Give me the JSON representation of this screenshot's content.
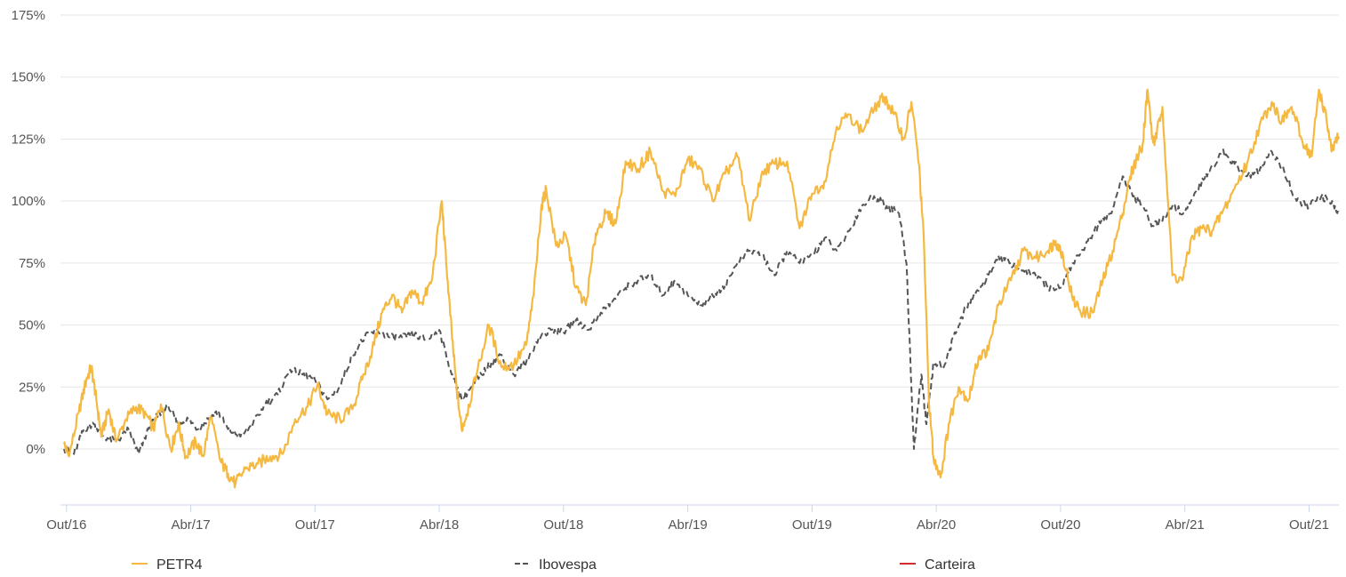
{
  "chart_data": {
    "type": "line",
    "title": "",
    "xlabel": "",
    "ylabel": "",
    "ylim": [
      -22,
      175
    ],
    "y_ticks": [
      {
        "value": 0,
        "label": "0%"
      },
      {
        "value": 25,
        "label": "25%"
      },
      {
        "value": 50,
        "label": "50%"
      },
      {
        "value": 75,
        "label": "75%"
      },
      {
        "value": 100,
        "label": "100%"
      },
      {
        "value": 125,
        "label": "125%"
      },
      {
        "value": 150,
        "label": "150%"
      },
      {
        "value": 175,
        "label": "175%"
      }
    ],
    "x_range": [
      2016.74,
      2021.87
    ],
    "x_ticks": [
      {
        "value": 2016.75,
        "label": "Out/16"
      },
      {
        "value": 2017.25,
        "label": "Abr/17"
      },
      {
        "value": 2017.75,
        "label": "Out/17"
      },
      {
        "value": 2018.25,
        "label": "Abr/18"
      },
      {
        "value": 2018.75,
        "label": "Out/18"
      },
      {
        "value": 2019.25,
        "label": "Abr/19"
      },
      {
        "value": 2019.75,
        "label": "Out/19"
      },
      {
        "value": 2020.25,
        "label": "Abr/20"
      },
      {
        "value": 2020.75,
        "label": "Out/20"
      },
      {
        "value": 2021.25,
        "label": "Abr/21"
      },
      {
        "value": 2021.75,
        "label": "Out/21"
      }
    ],
    "legend_position": "bottom",
    "series": [
      {
        "name": "PETR4",
        "color": "#f5b942",
        "dash": "solid",
        "x": [
          2016.74,
          2016.76,
          2016.8,
          2016.83,
          2016.85,
          2016.87,
          2016.89,
          2016.92,
          2016.95,
          2016.99,
          2017.03,
          2017.07,
          2017.1,
          2017.13,
          2017.17,
          2017.2,
          2017.23,
          2017.27,
          2017.3,
          2017.33,
          2017.37,
          2017.4,
          2017.43,
          2017.47,
          2017.52,
          2017.57,
          2017.62,
          2017.67,
          2017.72,
          2017.76,
          2017.8,
          2017.85,
          2017.9,
          2017.94,
          2017.98,
          2018.02,
          2018.06,
          2018.1,
          2018.14,
          2018.18,
          2018.22,
          2018.26,
          2018.28,
          2018.3,
          2018.32,
          2018.34,
          2018.36,
          2018.4,
          2018.45,
          2018.5,
          2018.55,
          2018.6,
          2018.63,
          2018.66,
          2018.68,
          2018.72,
          2018.76,
          2018.8,
          2018.84,
          2018.88,
          2018.92,
          2018.96,
          2019.0,
          2019.05,
          2019.1,
          2019.15,
          2019.2,
          2019.25,
          2019.3,
          2019.35,
          2019.4,
          2019.45,
          2019.5,
          2019.55,
          2019.6,
          2019.65,
          2019.7,
          2019.75,
          2019.8,
          2019.85,
          2019.9,
          2019.95,
          2020.0,
          2020.04,
          2020.08,
          2020.12,
          2020.15,
          2020.18,
          2020.2,
          2020.22,
          2020.24,
          2020.27,
          2020.3,
          2020.34,
          2020.38,
          2020.42,
          2020.46,
          2020.5,
          2020.55,
          2020.6,
          2020.65,
          2020.7,
          2020.73,
          2020.76,
          2020.8,
          2020.84,
          2020.88,
          2020.92,
          2020.96,
          2021.0,
          2021.03,
          2021.06,
          2021.08,
          2021.1,
          2021.12,
          2021.13,
          2021.16,
          2021.2,
          2021.24,
          2021.28,
          2021.32,
          2021.36,
          2021.4,
          2021.45,
          2021.5,
          2021.55,
          2021.6,
          2021.64,
          2021.68,
          2021.72,
          2021.76,
          2021.79,
          2021.82,
          2021.84,
          2021.87
        ],
        "values": [
          2,
          -3,
          15,
          28,
          33,
          20,
          5,
          16,
          3,
          12,
          17,
          14,
          8,
          18,
          0,
          10,
          -3,
          3,
          -3,
          13,
          -5,
          -10,
          -14,
          -8,
          -6,
          -3,
          -2,
          12,
          17,
          26,
          14,
          12,
          16,
          28,
          40,
          55,
          62,
          55,
          64,
          59,
          68,
          100,
          72,
          47,
          24,
          8,
          14,
          30,
          50,
          33,
          34,
          42,
          62,
          97,
          105,
          82,
          86,
          65,
          58,
          87,
          95,
          91,
          116,
          113,
          120,
          104,
          102,
          117,
          113,
          100,
          111,
          118,
          92,
          112,
          115,
          116,
          89,
          103,
          108,
          130,
          135,
          128,
          137,
          142,
          135,
          125,
          140,
          115,
          84,
          20,
          -5,
          -10,
          10,
          25,
          20,
          37,
          40,
          58,
          68,
          80,
          77,
          80,
          84,
          78,
          60,
          55,
          55,
          68,
          80,
          95,
          110,
          118,
          123,
          145,
          125,
          124,
          138,
          70,
          68,
          86,
          89,
          88,
          95,
          105,
          115,
          130,
          140,
          132,
          138,
          125,
          118,
          145,
          133,
          120,
          126
        ]
      },
      {
        "name": "Ibovespa",
        "color": "#555555",
        "dash": "dashed",
        "x": [
          2016.74,
          2016.78,
          2016.82,
          2016.86,
          2016.9,
          2016.95,
          2017.0,
          2017.04,
          2017.08,
          2017.12,
          2017.16,
          2017.2,
          2017.24,
          2017.28,
          2017.32,
          2017.36,
          2017.4,
          2017.45,
          2017.5,
          2017.55,
          2017.6,
          2017.65,
          2017.7,
          2017.75,
          2017.8,
          2017.85,
          2017.9,
          2017.95,
          2018.0,
          2018.05,
          2018.1,
          2018.15,
          2018.2,
          2018.25,
          2018.3,
          2018.34,
          2018.38,
          2018.42,
          2018.46,
          2018.5,
          2018.55,
          2018.6,
          2018.65,
          2018.7,
          2018.75,
          2018.8,
          2018.85,
          2018.9,
          2018.95,
          2019.0,
          2019.05,
          2019.1,
          2019.15,
          2019.2,
          2019.25,
          2019.3,
          2019.35,
          2019.4,
          2019.45,
          2019.5,
          2019.55,
          2019.6,
          2019.65,
          2019.7,
          2019.75,
          2019.8,
          2019.85,
          2019.9,
          2019.95,
          2020.0,
          2020.05,
          2020.1,
          2020.13,
          2020.16,
          2020.19,
          2020.21,
          2020.24,
          2020.28,
          2020.32,
          2020.36,
          2020.4,
          2020.45,
          2020.5,
          2020.55,
          2020.6,
          2020.65,
          2020.7,
          2020.75,
          2020.8,
          2020.85,
          2020.9,
          2020.95,
          2021.0,
          2021.04,
          2021.08,
          2021.12,
          2021.16,
          2021.2,
          2021.25,
          2021.3,
          2021.35,
          2021.4,
          2021.45,
          2021.5,
          2021.55,
          2021.6,
          2021.65,
          2021.7,
          2021.75,
          2021.8,
          2021.84,
          2021.87
        ],
        "values": [
          0,
          -2,
          8,
          10,
          5,
          3,
          8,
          -2,
          8,
          14,
          17,
          10,
          12,
          8,
          12,
          15,
          8,
          5,
          10,
          18,
          22,
          32,
          30,
          28,
          20,
          25,
          38,
          45,
          48,
          45,
          45,
          46,
          44,
          48,
          30,
          20,
          25,
          30,
          35,
          38,
          30,
          35,
          45,
          48,
          47,
          52,
          48,
          55,
          60,
          65,
          68,
          70,
          62,
          68,
          62,
          58,
          62,
          66,
          75,
          80,
          78,
          70,
          80,
          75,
          78,
          85,
          80,
          88,
          98,
          102,
          98,
          95,
          75,
          0,
          30,
          10,
          35,
          33,
          45,
          55,
          62,
          68,
          78,
          75,
          72,
          70,
          65,
          65,
          75,
          82,
          90,
          95,
          110,
          102,
          98,
          90,
          92,
          98,
          95,
          105,
          112,
          120,
          115,
          110,
          112,
          120,
          112,
          100,
          98,
          102,
          99,
          96
        ]
      },
      {
        "name": "Carteira",
        "color": "#d32b2b",
        "dash": "solid",
        "x": [],
        "values": []
      }
    ]
  }
}
